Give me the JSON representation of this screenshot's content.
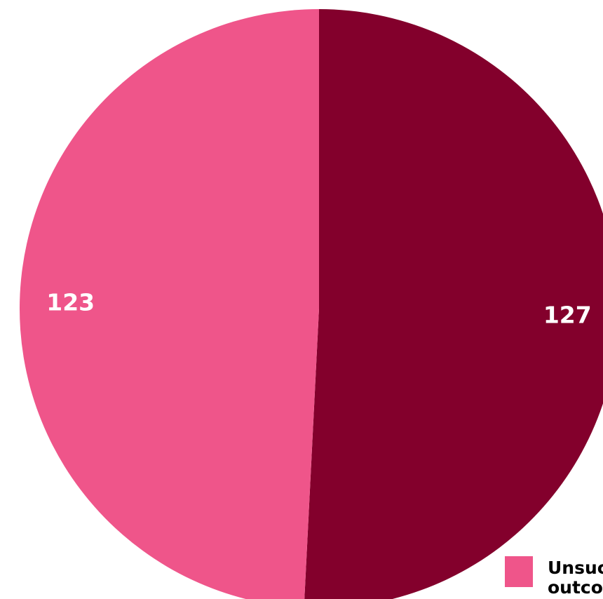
{
  "chart_data": {
    "type": "pie",
    "slices": [
      {
        "label": "",
        "value": 127,
        "color": "#83002c"
      },
      {
        "label": "Unsuccessful outcome",
        "value": 123,
        "color": "#ef558a"
      }
    ],
    "data_labels": [
      "127",
      "123"
    ],
    "legend": [
      {
        "label": "Unsuccessful outcome",
        "color": "#ef558a"
      }
    ],
    "legend_placement": "bottom-right",
    "start_angle": "12 o'clock, clockwise"
  }
}
